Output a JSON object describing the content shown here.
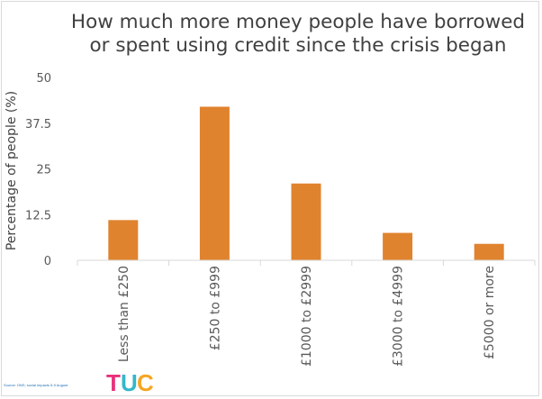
{
  "title_lines": [
    "How much more money people have borrowed",
    "or spent using credit since the crisis began"
  ],
  "source": "Source: ONS, social impacts 5-9 August",
  "logo": {
    "letters": [
      "T",
      "U",
      "C"
    ],
    "colors": [
      "#e8317a",
      "#34b7c9",
      "#f5a623"
    ]
  },
  "chart_data": {
    "type": "bar",
    "title": "How much more money people have borrowed or spent using credit since the crisis began",
    "xlabel": "",
    "ylabel": "Percentage of people (%)",
    "categories": [
      "Less than £250",
      "£250 to £999",
      "£1000 to £2999",
      "£3000 to £4999",
      "£5000 or more"
    ],
    "values": [
      11,
      42,
      21,
      7.5,
      4.5
    ],
    "ylim": [
      0,
      50
    ],
    "yticks": [
      0,
      12.5,
      25,
      37.5,
      50
    ],
    "ytick_labels": [
      "0",
      "12.5",
      "25",
      "37.5",
      "50"
    ],
    "grid": false,
    "bar_color": "#e0832f",
    "axis_color": "#d9d9d9"
  }
}
